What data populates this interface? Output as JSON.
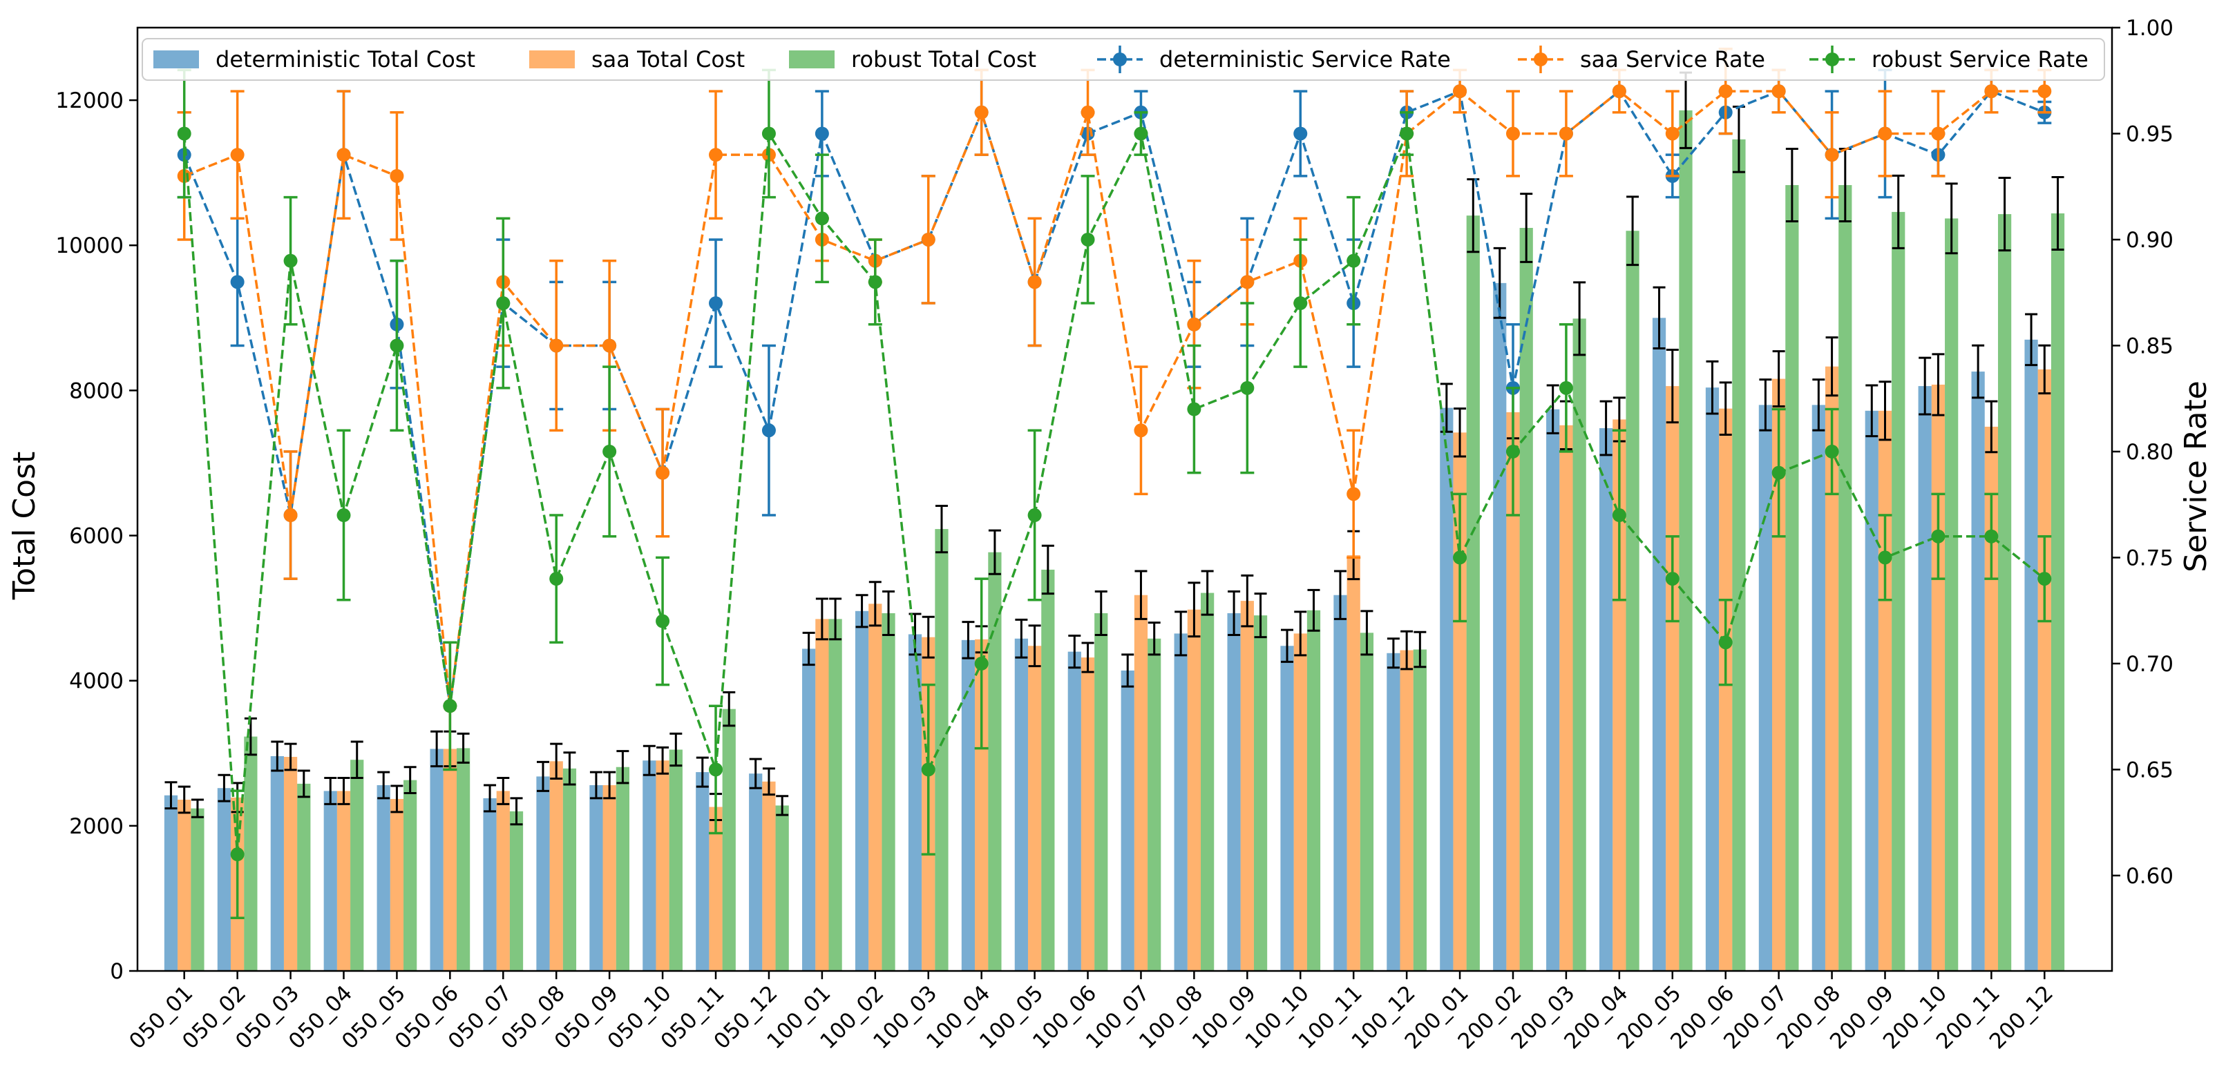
{
  "chart_data": {
    "type": "bar",
    "combo": "grouped bars with error bars (left axis) + dashed lines with markers and error bars (right axis)",
    "categories": [
      "050_01",
      "050_02",
      "050_03",
      "050_04",
      "050_05",
      "050_06",
      "050_07",
      "050_08",
      "050_09",
      "050_10",
      "050_11",
      "050_12",
      "100_01",
      "100_02",
      "100_03",
      "100_04",
      "100_05",
      "100_06",
      "100_07",
      "100_08",
      "100_09",
      "100_10",
      "100_11",
      "100_12",
      "200_01",
      "200_02",
      "200_03",
      "200_04",
      "200_05",
      "200_06",
      "200_07",
      "200_08",
      "200_09",
      "200_10",
      "200_11",
      "200_12"
    ],
    "ylabel": "Total Cost",
    "y2label": "Service Rate",
    "ylim": [
      0,
      13000
    ],
    "yticks": [
      0,
      2000,
      4000,
      6000,
      8000,
      10000,
      12000
    ],
    "y2lim": [
      0.555,
      1.0
    ],
    "y2ticks": [
      0.6,
      0.65,
      0.7,
      0.75,
      0.8,
      0.85,
      0.9,
      0.95,
      1.0
    ],
    "y2tick_labels": [
      "0.60",
      "0.65",
      "0.70",
      "0.75",
      "0.80",
      "0.85",
      "0.90",
      "0.95",
      "1.00"
    ],
    "legend_position": "top, inside axes",
    "bar_series": [
      {
        "name": "deterministic Total Cost",
        "color": "#1f77b4",
        "values": [
          2420,
          2520,
          2960,
          2480,
          2560,
          3060,
          2380,
          2680,
          2560,
          2900,
          2740,
          2720,
          4440,
          4960,
          4640,
          4560,
          4580,
          4400,
          4140,
          4650,
          4930,
          4480,
          5180,
          4380,
          7760,
          9480,
          7740,
          7480,
          9000,
          8040,
          7800,
          7800,
          7720,
          8060,
          8260,
          8700
        ],
        "errors": [
          180,
          180,
          200,
          180,
          180,
          240,
          180,
          200,
          180,
          200,
          200,
          200,
          220,
          220,
          280,
          250,
          260,
          220,
          220,
          300,
          300,
          220,
          330,
          200,
          330,
          480,
          330,
          370,
          420,
          360,
          350,
          350,
          350,
          390,
          360,
          350
        ]
      },
      {
        "name": "saa Total Cost",
        "color": "#ff7f0e",
        "values": [
          2360,
          2390,
          2950,
          2480,
          2370,
          3060,
          2480,
          2890,
          2560,
          2900,
          2260,
          2610,
          4850,
          5060,
          4600,
          4570,
          4480,
          4320,
          5180,
          4980,
          5100,
          4650,
          5730,
          4420,
          7420,
          7700,
          7520,
          7600,
          8060,
          7750,
          8160,
          8330,
          7720,
          8080,
          7500,
          8290
        ],
        "errors": [
          180,
          200,
          180,
          180,
          180,
          240,
          180,
          240,
          180,
          180,
          180,
          180,
          280,
          300,
          280,
          180,
          280,
          200,
          330,
          370,
          350,
          300,
          330,
          260,
          330,
          360,
          330,
          300,
          500,
          360,
          380,
          400,
          400,
          420,
          350,
          330
        ]
      },
      {
        "name": "robust Total Cost",
        "color": "#2ca02c",
        "values": [
          2240,
          3230,
          2580,
          2910,
          2630,
          3070,
          2200,
          2790,
          2810,
          3050,
          3610,
          2280,
          4850,
          4930,
          6090,
          5770,
          5530,
          4930,
          4580,
          5210,
          4900,
          4970,
          4660,
          4430,
          10410,
          10240,
          8990,
          10200,
          11860,
          11460,
          10830,
          10830,
          10460,
          10370,
          10430,
          10440
        ],
        "errors": [
          120,
          250,
          180,
          250,
          180,
          200,
          180,
          220,
          220,
          220,
          230,
          130,
          280,
          300,
          320,
          300,
          330,
          300,
          220,
          300,
          300,
          280,
          300,
          240,
          500,
          470,
          500,
          470,
          520,
          450,
          500,
          500,
          500,
          480,
          500,
          500
        ]
      }
    ],
    "line_series": [
      {
        "name": "deterministic Service Rate",
        "color": "#1f77b4",
        "values": [
          0.94,
          0.88,
          0.77,
          0.94,
          0.86,
          0.68,
          0.87,
          0.85,
          0.85,
          0.79,
          0.87,
          0.81,
          0.95,
          0.89,
          0.9,
          0.96,
          0.88,
          0.95,
          0.96,
          0.86,
          0.88,
          0.95,
          0.87,
          0.96,
          0.97,
          0.83,
          0.95,
          0.97,
          0.93,
          0.96,
          0.97,
          0.94,
          0.95,
          0.94,
          0.97,
          0.96
        ],
        "errors": [
          0.02,
          0.03,
          0.03,
          0.03,
          0.03,
          0.03,
          0.03,
          0.03,
          0.03,
          0.03,
          0.03,
          0.04,
          0.02,
          0.0,
          0.03,
          0.02,
          0.03,
          0.01,
          0.01,
          0.02,
          0.03,
          0.02,
          0.03,
          0.01,
          0.0,
          0.03,
          0.0,
          0.0,
          0.01,
          0.01,
          0.01,
          0.03,
          0.03,
          0.01,
          0.01,
          0.005
        ]
      },
      {
        "name": "saa Service Rate",
        "color": "#ff7f0e",
        "values": [
          0.93,
          0.94,
          0.77,
          0.94,
          0.93,
          0.68,
          0.88,
          0.85,
          0.85,
          0.79,
          0.94,
          0.94,
          0.9,
          0.89,
          0.9,
          0.96,
          0.88,
          0.96,
          0.81,
          0.86,
          0.88,
          0.89,
          0.78,
          0.95,
          0.97,
          0.95,
          0.95,
          0.97,
          0.95,
          0.97,
          0.97,
          0.94,
          0.95,
          0.95,
          0.97,
          0.97
        ],
        "errors": [
          0.03,
          0.03,
          0.03,
          0.03,
          0.03,
          0.03,
          0.03,
          0.04,
          0.04,
          0.03,
          0.03,
          0.0,
          0.01,
          0.01,
          0.03,
          0.02,
          0.03,
          0.02,
          0.03,
          0.03,
          0.02,
          0.02,
          0.03,
          0.02,
          0.01,
          0.02,
          0.02,
          0.01,
          0.02,
          0.02,
          0.01,
          0.02,
          0.02,
          0.02,
          0.01,
          0.01
        ]
      },
      {
        "name": "robust Service Rate",
        "color": "#2ca02c",
        "values": [
          0.95,
          0.61,
          0.89,
          0.77,
          0.85,
          0.68,
          0.87,
          0.74,
          0.8,
          0.72,
          0.65,
          0.95,
          0.91,
          0.88,
          0.65,
          0.7,
          0.77,
          0.9,
          0.95,
          0.82,
          0.83,
          0.87,
          0.89,
          0.95,
          0.75,
          0.8,
          0.83,
          0.77,
          0.74,
          0.71,
          0.79,
          0.8,
          0.75,
          0.76,
          0.76,
          0.74
        ],
        "errors": [
          0.03,
          0.03,
          0.03,
          0.04,
          0.04,
          0.03,
          0.04,
          0.03,
          0.04,
          0.03,
          0.03,
          0.03,
          0.03,
          0.02,
          0.04,
          0.04,
          0.04,
          0.03,
          0.01,
          0.03,
          0.04,
          0.03,
          0.03,
          0.01,
          0.03,
          0.03,
          0.03,
          0.04,
          0.02,
          0.02,
          0.03,
          0.02,
          0.02,
          0.02,
          0.02,
          0.02
        ]
      }
    ]
  }
}
